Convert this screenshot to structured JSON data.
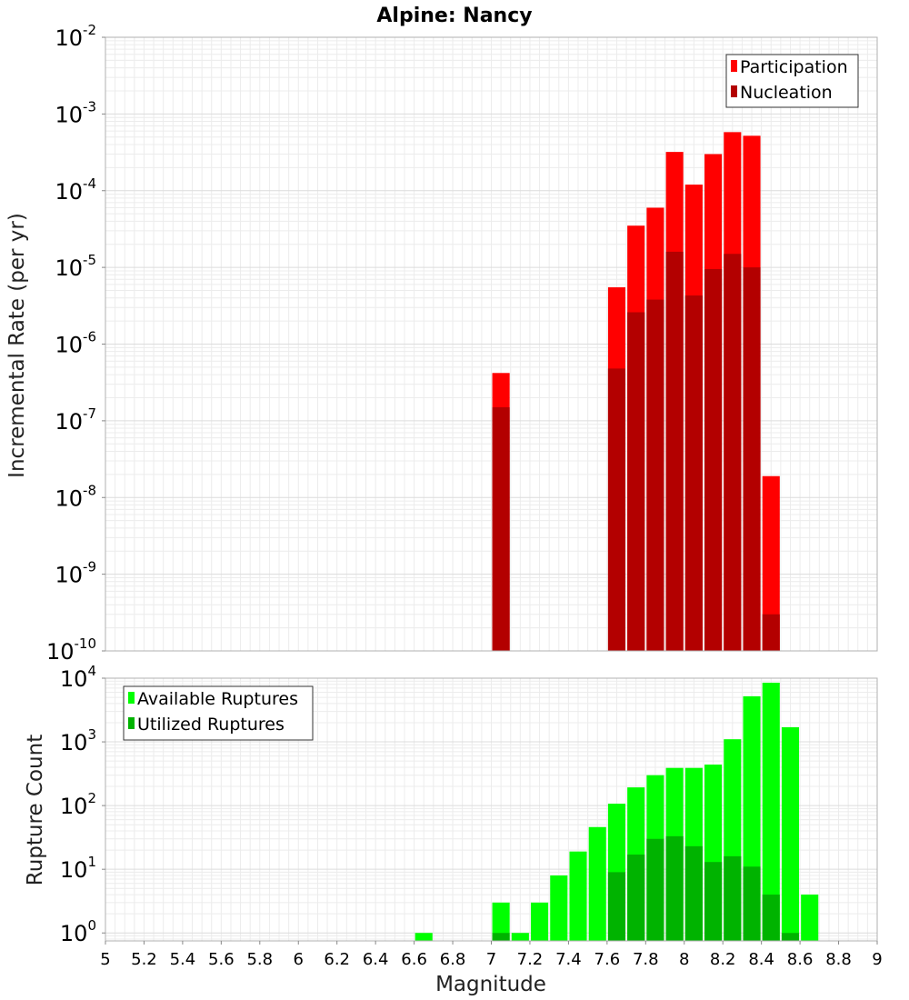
{
  "title": "Alpine: Nancy",
  "chart_data": [
    {
      "type": "bar",
      "y_scale": "log",
      "ylim": [
        1e-10,
        0.01
      ],
      "xlim": [
        5,
        9
      ],
      "ylabel": "Incremental Rate (per yr)",
      "y_ticks": [
        {
          "base": "10",
          "exp": "-10"
        },
        {
          "base": "10",
          "exp": "-9"
        },
        {
          "base": "10",
          "exp": "-8"
        },
        {
          "base": "10",
          "exp": "-7"
        },
        {
          "base": "10",
          "exp": "-6"
        },
        {
          "base": "10",
          "exp": "-5"
        },
        {
          "base": "10",
          "exp": "-4"
        },
        {
          "base": "10",
          "exp": "-3"
        },
        {
          "base": "10",
          "exp": "-2"
        }
      ],
      "legend": {
        "position": "top-right",
        "entries": [
          "Participation",
          "Nucleation"
        ]
      },
      "series": [
        {
          "name": "Participation",
          "color": "#ff0000",
          "x": [
            7.05,
            7.65,
            7.75,
            7.85,
            7.95,
            8.05,
            8.15,
            8.25,
            8.35,
            8.45
          ],
          "values": [
            4.2e-07,
            5.5e-06,
            3.5e-05,
            6e-05,
            0.00032,
            0.00012,
            0.0003,
            0.00058,
            0.00052,
            1.9e-08
          ]
        },
        {
          "name": "Nucleation",
          "color": "#b30000",
          "x": [
            7.05,
            7.65,
            7.75,
            7.85,
            7.95,
            8.05,
            8.15,
            8.25,
            8.35,
            8.45
          ],
          "values": [
            1.5e-07,
            4.8e-07,
            2.6e-06,
            3.8e-06,
            1.6e-05,
            4.3e-06,
            9.5e-06,
            1.5e-05,
            1e-05,
            3e-10
          ]
        }
      ]
    },
    {
      "type": "bar",
      "y_scale": "log",
      "ylim": [
        0.75,
        10000
      ],
      "xlim": [
        5,
        9
      ],
      "xlabel": "Magnitude",
      "ylabel": "Rupture Count",
      "x_ticks": [
        "5",
        "5.2",
        "5.4",
        "5.6",
        "5.8",
        "6",
        "6.2",
        "6.4",
        "6.6",
        "6.8",
        "7",
        "7.2",
        "7.4",
        "7.6",
        "7.8",
        "8",
        "8.2",
        "8.4",
        "8.6",
        "8.8",
        "9"
      ],
      "y_ticks": [
        {
          "base": "10",
          "exp": "0"
        },
        {
          "base": "10",
          "exp": "1"
        },
        {
          "base": "10",
          "exp": "2"
        },
        {
          "base": "10",
          "exp": "3"
        },
        {
          "base": "10",
          "exp": "4"
        }
      ],
      "legend": {
        "position": "top-left",
        "entries": [
          "Available Ruptures",
          "Utilized Ruptures"
        ]
      },
      "series": [
        {
          "name": "Available Ruptures",
          "color": "#00ff00",
          "x": [
            6.65,
            7.05,
            7.15,
            7.25,
            7.35,
            7.45,
            7.55,
            7.65,
            7.75,
            7.85,
            7.95,
            8.05,
            8.15,
            8.25,
            8.35,
            8.45,
            8.55,
            8.65
          ],
          "values": [
            1,
            3,
            1,
            3,
            8,
            19,
            46,
            107,
            193,
            300,
            390,
            390,
            440,
            1100,
            5200,
            8500,
            1700,
            4
          ]
        },
        {
          "name": "Utilized Ruptures",
          "color": "#00b300",
          "x": [
            7.05,
            7.65,
            7.75,
            7.85,
            7.95,
            8.05,
            8.15,
            8.25,
            8.35,
            8.45,
            8.55
          ],
          "values": [
            1,
            9,
            17,
            30,
            33,
            23,
            13,
            16,
            11,
            4,
            1
          ]
        }
      ]
    }
  ]
}
